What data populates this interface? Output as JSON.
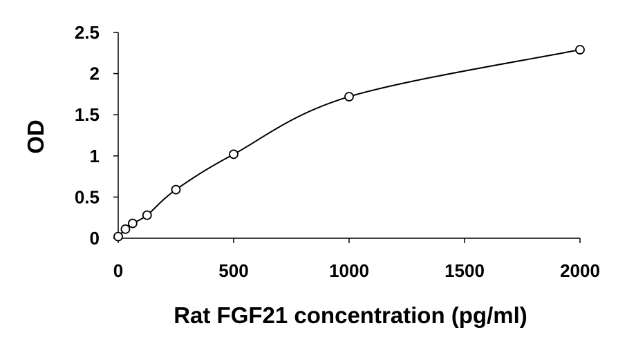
{
  "chart_data": {
    "type": "scatter",
    "title": "",
    "xlabel": "Rat FGF21 concentration (pg/ml)",
    "ylabel": "OD",
    "xlim": [
      0,
      2000
    ],
    "ylim": [
      0,
      2.5
    ],
    "x_ticks": [
      "0",
      "500",
      "1000",
      "1500",
      "2000"
    ],
    "y_ticks": [
      "0",
      "0.5",
      "1",
      "1.5",
      "2",
      "2.5"
    ],
    "grid": false,
    "legend": "none",
    "series": [
      {
        "marker": "open-circle",
        "trendline": "smooth curve",
        "color": "#000000",
        "points": [
          {
            "x": 0,
            "y": 0.02
          },
          {
            "x": 31.25,
            "y": 0.11
          },
          {
            "x": 62.5,
            "y": 0.18
          },
          {
            "x": 125,
            "y": 0.28
          },
          {
            "x": 250,
            "y": 0.59
          },
          {
            "x": 500,
            "y": 1.02
          },
          {
            "x": 1000,
            "y": 1.72
          },
          {
            "x": 2000,
            "y": 2.29
          }
        ]
      }
    ]
  }
}
